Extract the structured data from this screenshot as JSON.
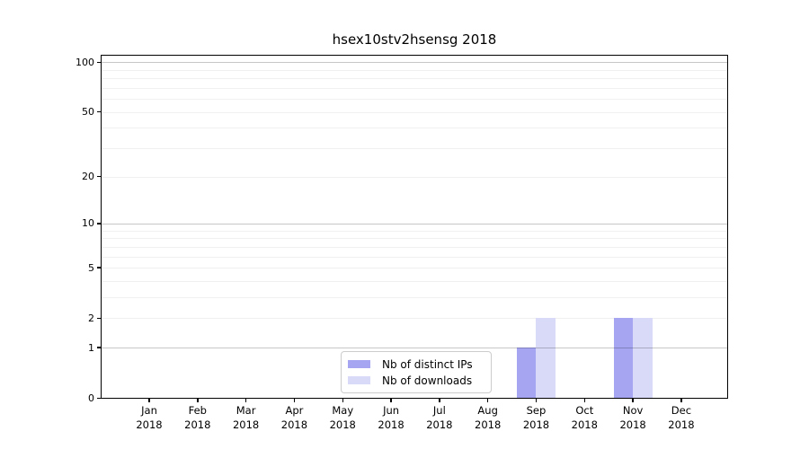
{
  "title": "hsex10stv2hsensg 2018",
  "legend": {
    "items": [
      {
        "label": "Nb of distinct IPs",
        "color": "#a5a5f2"
      },
      {
        "label": "Nb of downloads",
        "color": "#d9d9f8"
      }
    ]
  },
  "chart_data": {
    "type": "bar",
    "title": "hsex10stv2hsensg 2018",
    "scale": "log10(1+x)",
    "categories": [
      "Jan",
      "Feb",
      "Mar",
      "Apr",
      "May",
      "Jun",
      "Jul",
      "Aug",
      "Sep",
      "Oct",
      "Nov",
      "Dec"
    ],
    "year": "2018",
    "series": [
      {
        "name": "Nb of distinct IPs",
        "color": "#a5a5f2",
        "values": [
          0,
          0,
          0,
          0,
          0,
          0,
          0,
          0,
          1,
          0,
          2,
          0
        ]
      },
      {
        "name": "Nb of downloads",
        "color": "#d9d9f8",
        "values": [
          0,
          0,
          0,
          0,
          0,
          0,
          0,
          0,
          2,
          0,
          2,
          0
        ]
      }
    ],
    "yticks": [
      0,
      1,
      2,
      5,
      10,
      20,
      50,
      100
    ],
    "ytick_labels": [
      "0",
      "1",
      "2",
      "5",
      "10",
      "20",
      "50",
      "100"
    ],
    "ylim": [
      0,
      110
    ],
    "grid_major": [
      1,
      10,
      100
    ],
    "grid_minor": [
      2,
      3,
      4,
      5,
      6,
      7,
      8,
      9,
      20,
      30,
      40,
      50,
      60,
      70,
      80,
      90
    ],
    "xlabel": "",
    "ylabel": "",
    "legend_position": "lower center"
  }
}
